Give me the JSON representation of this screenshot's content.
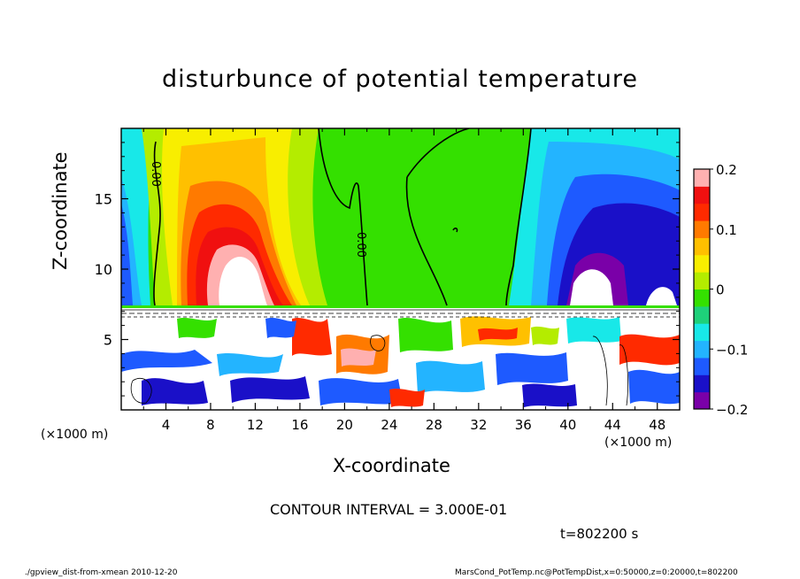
{
  "title": "disturbunce of potential temperature",
  "chart_data": {
    "type": "heatmap",
    "title": "disturbunce of potential temperature",
    "xlabel": "X-coordinate",
    "ylabel": "Z-coordinate",
    "x_unit": "(×1000 m)",
    "x_ticks": [
      4,
      8,
      12,
      16,
      20,
      24,
      28,
      32,
      36,
      40,
      44,
      48
    ],
    "y_ticks": [
      5,
      10,
      15
    ],
    "xlim": [
      0,
      50
    ],
    "ylim": [
      0,
      20
    ],
    "colorbar": {
      "ticks": [
        0.2,
        0.1,
        0,
        -0.1,
        -0.2
      ],
      "tick_labels": [
        "0.2",
        "0.1",
        "0",
        "−0.1",
        "−0.2"
      ],
      "range": [
        -0.2,
        0.2
      ]
    },
    "contour_labels": [
      "0.00",
      "0.00"
    ],
    "features": [
      {
        "kind": "warm anomaly",
        "x": 11.5,
        "z": 11,
        "value": 0.2
      },
      {
        "kind": "cold anomaly",
        "x": 43,
        "z": 11,
        "value": -0.2
      }
    ]
  },
  "contour_interval": "CONTOUR INTERVAL = 3.000E-01",
  "time_label": "t=802200 s",
  "footer_left": "./gpview_dist-from-xmean  2010-12-20",
  "footer_right": "MarsCond_PotTemp.nc@PotTempDist,x=0:50000,z=0:20000,t=802200",
  "colors": {
    "scale": [
      "#7a00a8",
      "#1a10c8",
      "#1e5aff",
      "#23b4ff",
      "#18e8e8",
      "#1ed07a",
      "#34e000",
      "#b4ec00",
      "#f8ee00",
      "#ffc000",
      "#ff7a00",
      "#ff2a00",
      "#f01010",
      "#ffb0b0"
    ]
  }
}
